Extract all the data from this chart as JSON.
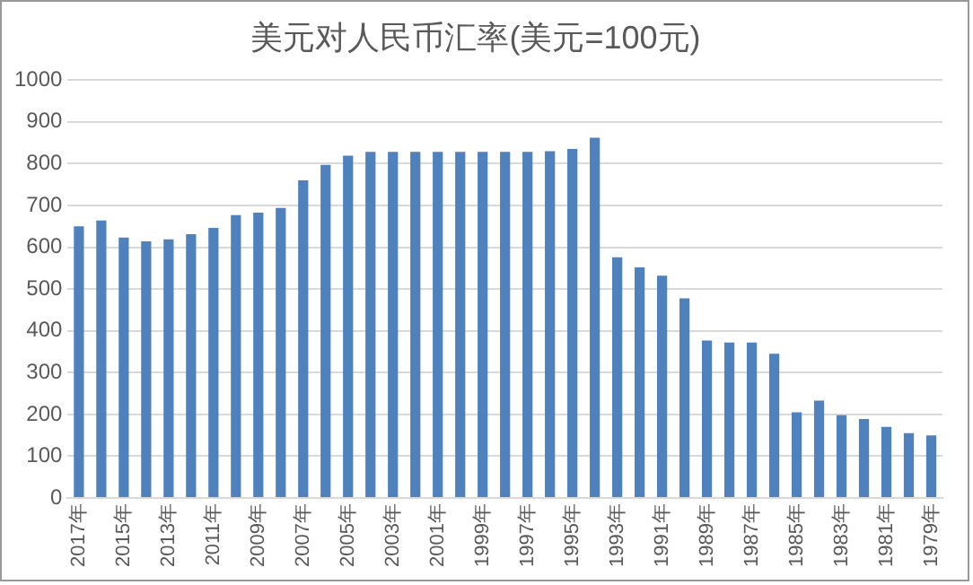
{
  "chart_data": {
    "type": "bar",
    "title": "美元对人民币汇率(美元=100元)",
    "categories": [
      "2017年",
      null,
      "2015年",
      null,
      "2013年",
      null,
      "2011年",
      null,
      "2009年",
      null,
      "2007年",
      null,
      "2005年",
      null,
      "2003年",
      null,
      "2001年",
      null,
      "1999年",
      null,
      "1997年",
      null,
      "1995年",
      null,
      "1993年",
      null,
      "1991年",
      null,
      "1989年",
      null,
      "1987年",
      null,
      "1985年",
      null,
      "1983年",
      null,
      "1981年",
      null,
      "1979年"
    ],
    "values": [
      650,
      664,
      623,
      614,
      619,
      631,
      646,
      677,
      683,
      694,
      760,
      797,
      819,
      828,
      828,
      828,
      828,
      828,
      828,
      828,
      828,
      830,
      835,
      862,
      576,
      552,
      532,
      478,
      377,
      372,
      372,
      345,
      205,
      233,
      198,
      189,
      170,
      155,
      150
    ],
    "color": "#4f81bd",
    "ylim": [
      0,
      1000
    ],
    "yticks": [
      0,
      100,
      200,
      300,
      400,
      500,
      600,
      700,
      800,
      900,
      1000
    ],
    "grid": "y",
    "legend": false
  }
}
